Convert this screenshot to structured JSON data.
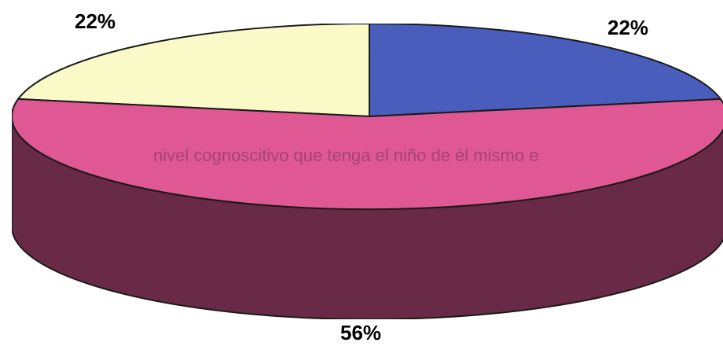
{
  "chart_data": {
    "type": "pie",
    "style": "3d-tilted",
    "title": "",
    "slices": [
      {
        "label": "22%",
        "value": 22,
        "color": "#4a5fc0"
      },
      {
        "label": "56%",
        "value": 56,
        "color": "#e45a96"
      },
      {
        "label": "22%",
        "value": 22,
        "color": "#ffffcc"
      }
    ],
    "side_colors": {
      "magenta": "#6b2a48"
    },
    "legend": "none"
  },
  "bleed_through": {
    "line2": "nivel cognoscitivo que tenga el niño de él mismo e"
  }
}
